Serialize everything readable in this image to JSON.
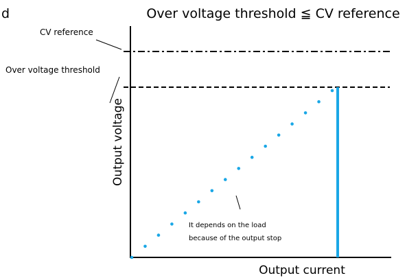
{
  "cropped_left_text": "d",
  "title": "Over voltage threshold ≦ CV reference",
  "labels": {
    "cv_reference": "CV reference",
    "over_voltage_threshold": "Over voltage threshold",
    "y_axis": "Output voltage",
    "x_axis": "Output current"
  },
  "annotation": {
    "line1": "It depends on the load",
    "line2": "because of the output stop"
  }
}
